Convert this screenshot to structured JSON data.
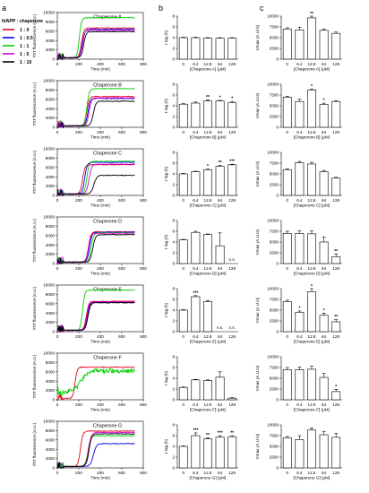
{
  "panel_letters": [
    "a",
    "b",
    "c"
  ],
  "legend": {
    "title": "hIAPP : chaperone",
    "entries": [
      {
        "label": "1 : 0",
        "color": "#e8001c"
      },
      {
        "label": "1 : 0.5",
        "color": "#0000ee"
      },
      {
        "label": "1 : 1",
        "color": "#00d000"
      },
      {
        "label": "1 : 5",
        "color": "#d000d0"
      },
      {
        "label": "1 : 10",
        "color": "#000000"
      }
    ]
  },
  "chart_data": {
    "type": "multi-panel",
    "kinetics": {
      "type": "line",
      "xlabel": "Time (min)",
      "ylabel": "ThT fluorescence (A.U.)",
      "xticks": [
        0,
        200,
        400,
        600,
        800
      ],
      "yticks": [
        0,
        2000,
        4000,
        6000,
        8000,
        10000
      ],
      "xlim": [
        0,
        800
      ],
      "ylim": [
        0,
        10000
      ],
      "panels": [
        {
          "title": "Chaperone A",
          "series": [
            {
              "lag": 225,
              "width": 45,
              "plateau": 6700
            },
            {
              "lag": 235,
              "width": 45,
              "plateau": 6400
            },
            {
              "lag": 205,
              "width": 40,
              "plateau": 8900
            },
            {
              "lag": 230,
              "width": 45,
              "plateau": 6200
            },
            {
              "lag": 245,
              "width": 45,
              "plateau": 5900
            }
          ]
        },
        {
          "title": "Chaperone B",
          "series": [
            {
              "lag": 275,
              "width": 45,
              "plateau": 6600
            },
            {
              "lag": 285,
              "width": 45,
              "plateau": 6200
            },
            {
              "lag": 275,
              "width": 45,
              "plateau": 8300
            },
            {
              "lag": 295,
              "width": 45,
              "plateau": 6300
            },
            {
              "lag": 335,
              "width": 50,
              "plateau": 5600
            }
          ]
        },
        {
          "title": "Chaperone C",
          "series": [
            {
              "lag": 235,
              "width": 45,
              "plateau": 6600
            },
            {
              "lag": 255,
              "width": 45,
              "plateau": 7100
            },
            {
              "lag": 275,
              "width": 45,
              "plateau": 7300
            },
            {
              "lag": 295,
              "width": 50,
              "plateau": 6700
            },
            {
              "lag": 340,
              "width": 55,
              "plateau": 4300
            }
          ]
        },
        {
          "title": "Chaperone D",
          "series": [
            {
              "lag": 290,
              "width": 45,
              "plateau": 6800
            },
            {
              "lag": 300,
              "width": 45,
              "plateau": 6700
            },
            {
              "lag": 315,
              "width": 45,
              "plateau": 6600
            },
            {
              "lag": 290,
              "width": 45,
              "plateau": 6500
            },
            {
              "lag": 330,
              "width": 50,
              "plateau": 6200
            }
          ]
        },
        {
          "title": "Chaperone E",
          "series": [
            {
              "lag": 270,
              "width": 45,
              "plateau": 6500
            },
            {
              "lag": 280,
              "width": 45,
              "plateau": 6300
            },
            {
              "lag": 235,
              "width": 40,
              "plateau": 8900
            },
            {
              "lag": 275,
              "width": 45,
              "plateau": 6400
            },
            {
              "lag": 285,
              "width": 45,
              "plateau": 6200
            }
          ]
        },
        {
          "title": "Chaperone F",
          "series": [
            {
              "lag": 165,
              "width": 40,
              "plateau": 7000
            },
            {
              "lag": 0,
              "width": 1,
              "plateau": 0
            },
            {
              "lag": 220,
              "width": 120,
              "plateau": 6200,
              "start": 1800,
              "noisy": true
            },
            {
              "lag": 0,
              "width": 1,
              "plateau": 0
            },
            {
              "lag": 0,
              "width": 1,
              "plateau": 0
            }
          ]
        },
        {
          "title": "Chaperone G",
          "series": [
            {
              "lag": 215,
              "width": 45,
              "plateau": 7900
            },
            {
              "lag": 335,
              "width": 55,
              "plateau": 5200
            },
            {
              "lag": 285,
              "width": 50,
              "plateau": 6900
            },
            {
              "lag": 290,
              "width": 50,
              "plateau": 7600
            },
            {
              "lag": 295,
              "width": 50,
              "plateau": 7300
            }
          ]
        }
      ]
    },
    "lag_bars": {
      "type": "bar",
      "categories": [
        "0",
        "6.4",
        "12.8",
        "64",
        "128"
      ],
      "ylabel": "τ lag (h)",
      "yticks": [
        0,
        2,
        4,
        6,
        8
      ],
      "ylim": [
        0,
        8
      ],
      "panels": [
        {
          "xlabel": "[Chaperone A] (μM)",
          "values": [
            4.0,
            4.0,
            3.9,
            3.9,
            3.9
          ],
          "errors": [
            0.1,
            0.1,
            0.1,
            0.1,
            0.1
          ],
          "sig": [
            "",
            "",
            "",
            "",
            ""
          ]
        },
        {
          "xlabel": "[Chaperone B] (μM)",
          "values": [
            4.3,
            4.5,
            4.9,
            4.9,
            4.6
          ],
          "errors": [
            0.1,
            0.2,
            0.2,
            0.1,
            0.2
          ],
          "sig": [
            "",
            "",
            "**",
            "*",
            "*"
          ]
        },
        {
          "xlabel": "[Chaperone C] (μM)",
          "values": [
            4.0,
            4.4,
            4.8,
            5.4,
            5.7
          ],
          "errors": [
            0.1,
            0.1,
            0.1,
            0.2,
            0.1
          ],
          "sig": [
            "",
            "",
            "*",
            "**",
            "***"
          ]
        },
        {
          "xlabel": "[Chaperone D] (μM)",
          "values": [
            4.4,
            5.8,
            5.4,
            3.3,
            0
          ],
          "errors": [
            0.1,
            0.2,
            0.1,
            2.4,
            0
          ],
          "sig": [
            "",
            "",
            "",
            "",
            "n.s."
          ]
        },
        {
          "xlabel": "[Chaperone E] (μM)",
          "values": [
            4.0,
            6.5,
            5.6,
            0,
            0
          ],
          "errors": [
            0.1,
            0.2,
            0.2,
            0,
            0
          ],
          "sig": [
            "",
            "***",
            "",
            "n.s.",
            "n.s."
          ]
        },
        {
          "xlabel": "[Chaperone F] (μM)",
          "values": [
            2.3,
            3.7,
            3.6,
            4.2,
            0.3
          ],
          "errors": [
            0.1,
            0.1,
            0.1,
            1.0,
            0.1
          ],
          "sig": [
            "",
            "",
            "",
            "",
            ""
          ]
        },
        {
          "xlabel": "[Chaperone G] (μM)",
          "values": [
            4.0,
            6.0,
            5.4,
            5.7,
            5.8
          ],
          "errors": [
            0.1,
            0.5,
            0.2,
            0.3,
            0.2
          ],
          "sig": [
            "",
            "***",
            "**",
            "***",
            "**"
          ]
        }
      ]
    },
    "vmax_bars": {
      "type": "bar",
      "categories": [
        "0",
        "6.4",
        "12.8",
        "64",
        "128"
      ],
      "ylabel": "Vmax (A.U./s)",
      "yticks": [
        0,
        2500,
        5000,
        7500,
        10000
      ],
      "ylim": [
        0,
        10000
      ],
      "panels": [
        {
          "xlabel": "[Chaperone A] (μM)",
          "values": [
            7000,
            6800,
            9600,
            6700,
            6000
          ],
          "errors": [
            300,
            600,
            400,
            300,
            300
          ],
          "sig": [
            "",
            "",
            "**",
            "",
            ""
          ]
        },
        {
          "xlabel": "[Chaperone B] (μM)",
          "values": [
            7000,
            6000,
            8700,
            5300,
            6000
          ],
          "errors": [
            200,
            500,
            200,
            300,
            200
          ],
          "sig": [
            "",
            "",
            "*",
            "*",
            ""
          ]
        },
        {
          "xlabel": "[Chaperone C] (μM)",
          "values": [
            6000,
            7600,
            7300,
            5500,
            4000
          ],
          "errors": [
            200,
            300,
            400,
            300,
            200
          ],
          "sig": [
            "",
            "",
            "",
            "",
            ""
          ]
        },
        {
          "xlabel": "[Chaperone D] (μM)",
          "values": [
            7000,
            7000,
            6900,
            5000,
            1600
          ],
          "errors": [
            500,
            600,
            700,
            1200,
            600
          ],
          "sig": [
            "",
            "",
            "",
            "",
            "**"
          ]
        },
        {
          "xlabel": "[Chaperone E] (μM)",
          "values": [
            7000,
            4500,
            9300,
            3800,
            2300
          ],
          "errors": [
            300,
            300,
            700,
            500,
            500
          ],
          "sig": [
            "",
            "*",
            "*",
            "*",
            "**"
          ]
        },
        {
          "xlabel": "[Chaperone F] (μM)",
          "values": [
            7000,
            7000,
            7100,
            5200,
            1900
          ],
          "errors": [
            500,
            600,
            700,
            900,
            500
          ],
          "sig": [
            "",
            "",
            "",
            "",
            "*"
          ]
        },
        {
          "xlabel": "[Chaperone G] (μM)",
          "values": [
            7000,
            6600,
            8800,
            7700,
            7100
          ],
          "errors": [
            300,
            900,
            500,
            800,
            900
          ],
          "sig": [
            "",
            "",
            "",
            "",
            ""
          ]
        }
      ]
    }
  }
}
